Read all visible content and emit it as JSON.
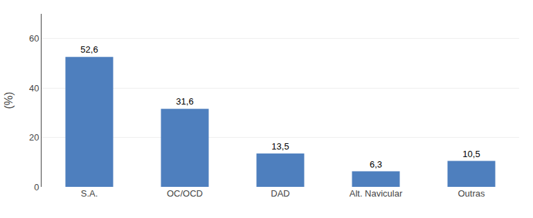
{
  "chart_data": {
    "type": "bar",
    "categories": [
      "S.A.",
      "OC/OCD",
      "DAD",
      "Alt. Navicular",
      "Outras"
    ],
    "values": [
      52.6,
      31.6,
      13.5,
      6.3,
      10.5
    ],
    "value_labels": [
      "52,6",
      "31,6",
      "13,5",
      "6,3",
      "10,5"
    ],
    "color": "#4E7FBE",
    "ylabel": "(%)",
    "ylim": [
      0,
      70
    ],
    "yticks": [
      0,
      20,
      40,
      60
    ],
    "grid": true,
    "data_labels": true
  }
}
